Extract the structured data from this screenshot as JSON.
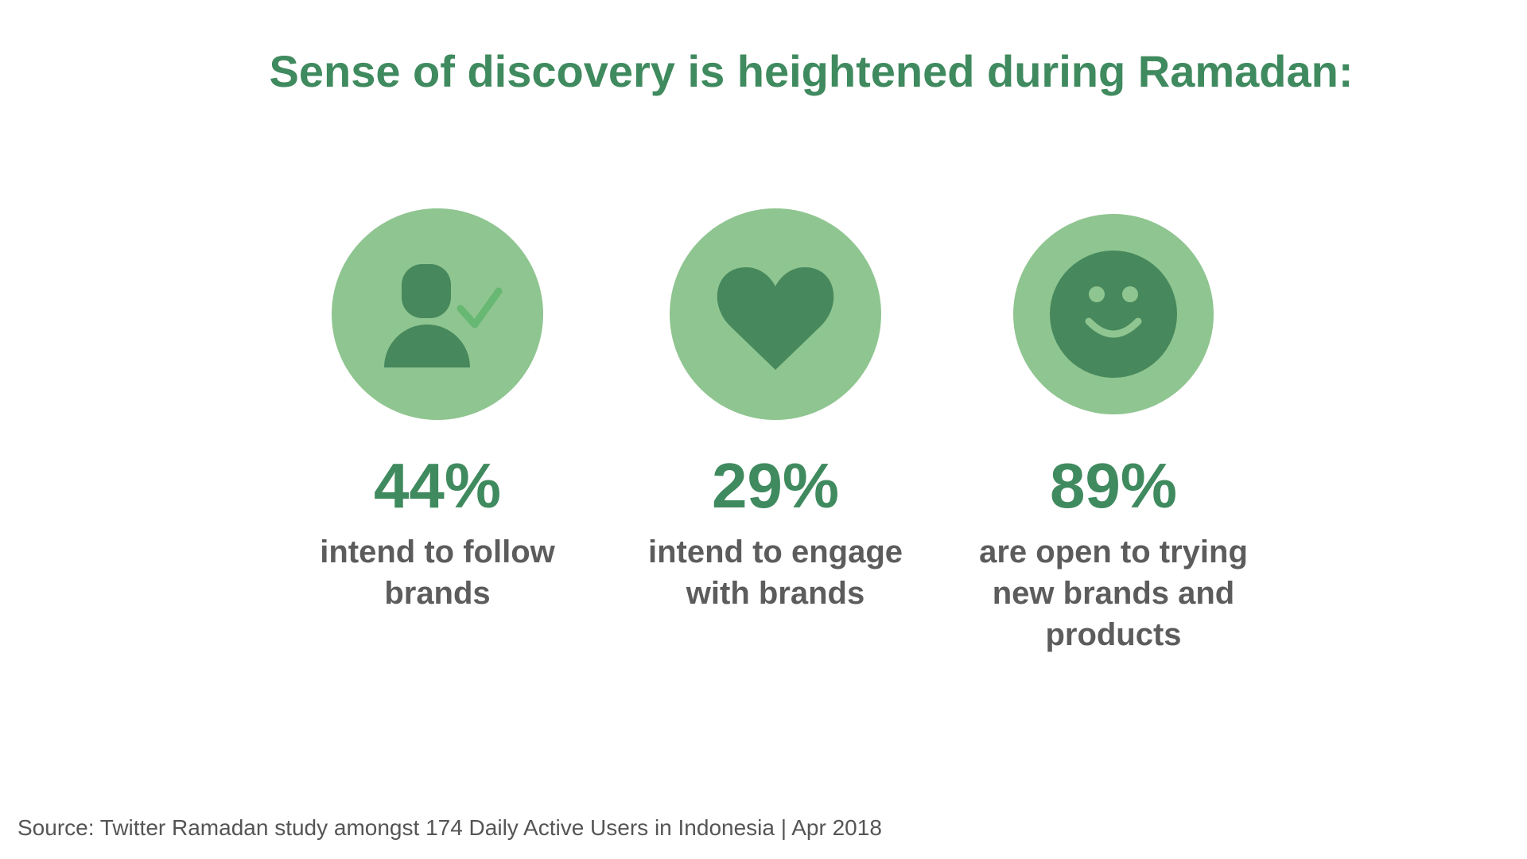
{
  "chart_data": {
    "type": "infographic",
    "title": "Sense of discovery is heightened during Ramadan:",
    "stats": [
      {
        "value": "44%",
        "number": 44,
        "label_lines": [
          "intend to follow",
          "brands"
        ],
        "icon": "user-check-icon"
      },
      {
        "value": "29%",
        "number": 29,
        "label_lines": [
          "intend to engage",
          "with brands"
        ],
        "icon": "heart-icon"
      },
      {
        "value": "89%",
        "number": 89,
        "label_lines": [
          "are open to trying",
          "new brands and",
          "products"
        ],
        "icon": "smiley-face-icon"
      }
    ],
    "source": "Source: Twitter Ramadan study amongst 174 Daily Active Users in Indonesia | Apr 2018"
  },
  "colors": {
    "circle": "#8fc590",
    "icon_dark": "#47895d",
    "check_mark": "#67b873",
    "title": "#3f8a5e",
    "value": "#3f8a5e",
    "label": "#5c5c5c",
    "source": "#555555"
  }
}
